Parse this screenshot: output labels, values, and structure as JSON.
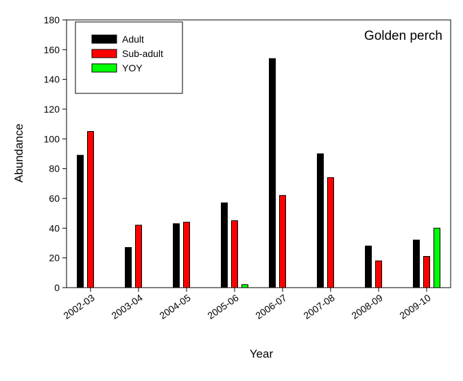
{
  "chart_data": {
    "type": "bar",
    "title": "Golden perch",
    "xlabel": "Year",
    "ylabel": "Abundance",
    "ylim": [
      0,
      180
    ],
    "yticks": [
      0,
      20,
      40,
      60,
      80,
      100,
      120,
      140,
      160,
      180
    ],
    "grid": false,
    "legend_position": "top-left",
    "categories": [
      "2002-03",
      "2003-04",
      "2004-05",
      "2005-06",
      "2006-07",
      "2007-08",
      "2008-09",
      "2009-10"
    ],
    "series": [
      {
        "name": "Adult",
        "color": "#000000",
        "values": [
          89,
          27,
          43,
          57,
          154,
          90,
          28,
          32
        ]
      },
      {
        "name": "Sub-adult",
        "color": "#ff0000",
        "values": [
          105,
          42,
          44,
          45,
          62,
          74,
          18,
          21
        ]
      },
      {
        "name": "YOY",
        "color": "#00ff00",
        "values": [
          0,
          0,
          0,
          2,
          0,
          0,
          0,
          40
        ]
      }
    ]
  }
}
